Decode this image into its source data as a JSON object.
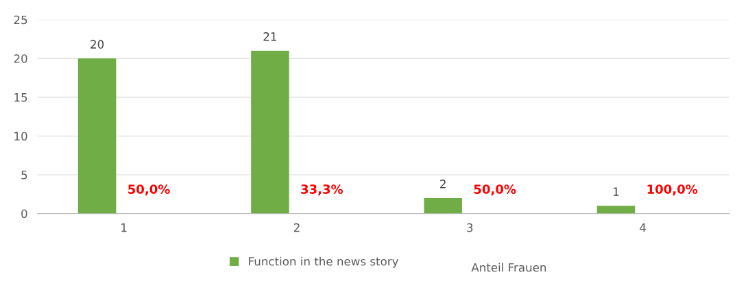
{
  "chart_data": {
    "type": "bar",
    "categories": [
      "1",
      "2",
      "3",
      "4"
    ],
    "series": [
      {
        "name": "Function in the news story",
        "color": "#70ad47",
        "values": [
          20,
          21,
          2,
          1
        ],
        "value_labels": [
          "20",
          "21",
          "2",
          "1"
        ]
      }
    ],
    "annotations": [
      "50,0%",
      "33,3%",
      "50,0%",
      "100,0%",
      "Anteil Frauen"
    ],
    "ylim": [
      0,
      25
    ],
    "yticks": [
      0,
      5,
      10,
      15,
      20,
      25
    ],
    "grid": "y",
    "legend": "bottom"
  }
}
